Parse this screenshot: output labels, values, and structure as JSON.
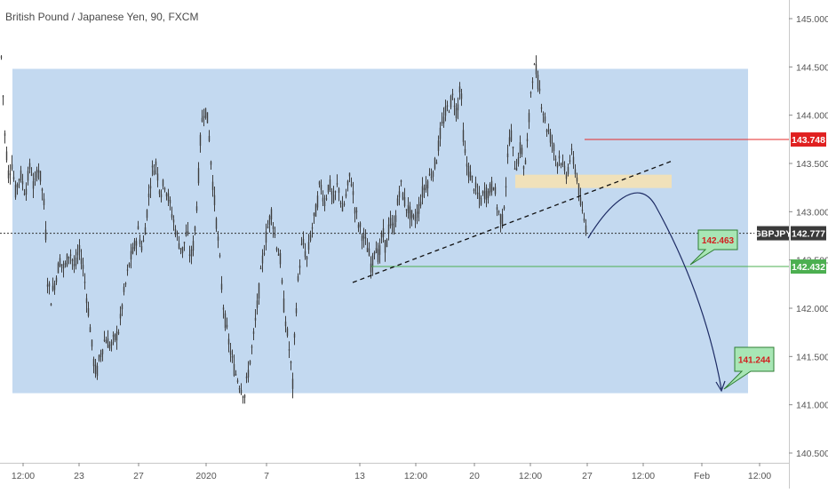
{
  "header": {
    "title": "British Pound / Japanese Yen, 90, FXCM"
  },
  "colors": {
    "zone_fill": "#c3d9f0",
    "supply_zone": "#f2e2b6",
    "red_line": "#e52b2b",
    "green_line": "#4caf50",
    "candles": "#3e3e3e",
    "target_fill": "#a8e6b5",
    "price_tag": "#3a3a3a",
    "red_tag": "#e02020",
    "green_tag": "#4caf50"
  },
  "chart_data": {
    "type": "candlestick",
    "symbol": "GBPJPY",
    "timeframe": "90",
    "source": "FXCM",
    "ylim": [
      140.42,
      145.17
    ],
    "y_ticks": [
      "145.000",
      "144.500",
      "144.000",
      "143.500",
      "143.000",
      "142.500",
      "142.000",
      "141.500",
      "141.000",
      "140.500"
    ],
    "x_ticks": [
      "12:00",
      "23",
      "27",
      "2020",
      "7",
      "13",
      "12:00",
      "20",
      "12:00",
      "27",
      "12:00",
      "Feb",
      "12:00"
    ],
    "series_path": [
      [
        0,
        144.8
      ],
      [
        2,
        144.4
      ],
      [
        5,
        143.8
      ],
      [
        9,
        143.4
      ],
      [
        13,
        143.5
      ],
      [
        17,
        143.2
      ],
      [
        22,
        143.4
      ],
      [
        28,
        143.2
      ],
      [
        34,
        143.5
      ],
      [
        38,
        143.2
      ],
      [
        42,
        143.5
      ],
      [
        46,
        143.3
      ],
      [
        50,
        143.0
      ],
      [
        53,
        142.3
      ],
      [
        57,
        142.1
      ],
      [
        62,
        142.3
      ],
      [
        67,
        142.5
      ],
      [
        72,
        142.4
      ],
      [
        78,
        142.6
      ],
      [
        84,
        142.4
      ],
      [
        88,
        142.6
      ],
      [
        92,
        142.5
      ],
      [
        96,
        142.2
      ],
      [
        100,
        141.9
      ],
      [
        104,
        141.5
      ],
      [
        108,
        141.3
      ],
      [
        112,
        141.5
      ],
      [
        118,
        141.7
      ],
      [
        124,
        141.6
      ],
      [
        130,
        141.7
      ],
      [
        134,
        141.8
      ],
      [
        138,
        142.1
      ],
      [
        142,
        142.3
      ],
      [
        146,
        142.5
      ],
      [
        150,
        142.6
      ],
      [
        155,
        142.8
      ],
      [
        160,
        142.6
      ],
      [
        165,
        143.0
      ],
      [
        170,
        143.4
      ],
      [
        175,
        143.5
      ],
      [
        180,
        143.2
      ],
      [
        185,
        143.3
      ],
      [
        190,
        143.1
      ],
      [
        195,
        142.9
      ],
      [
        200,
        142.7
      ],
      [
        205,
        142.6
      ],
      [
        210,
        142.8
      ],
      [
        214,
        142.5
      ],
      [
        218,
        142.7
      ],
      [
        222,
        143.2
      ],
      [
        226,
        143.9
      ],
      [
        230,
        144.1
      ],
      [
        234,
        143.9
      ],
      [
        238,
        143.4
      ],
      [
        242,
        143.0
      ],
      [
        246,
        142.6
      ],
      [
        250,
        142.1
      ],
      [
        254,
        141.8
      ],
      [
        258,
        141.6
      ],
      [
        262,
        141.4
      ],
      [
        266,
        141.3
      ],
      [
        270,
        141.2
      ],
      [
        275,
        141.1
      ],
      [
        280,
        141.4
      ],
      [
        285,
        141.7
      ],
      [
        290,
        142.1
      ],
      [
        295,
        142.5
      ],
      [
        300,
        142.8
      ],
      [
        305,
        143.0
      ],
      [
        310,
        142.7
      ],
      [
        315,
        142.5
      ],
      [
        318,
        142.1
      ],
      [
        322,
        141.8
      ],
      [
        326,
        141.5
      ],
      [
        329,
        141.2
      ],
      [
        332,
        141.9
      ],
      [
        336,
        142.4
      ],
      [
        340,
        142.7
      ],
      [
        345,
        142.5
      ],
      [
        350,
        142.8
      ],
      [
        355,
        143.0
      ],
      [
        360,
        143.3
      ],
      [
        365,
        143.1
      ],
      [
        370,
        143.3
      ],
      [
        375,
        143.1
      ],
      [
        380,
        143.3
      ],
      [
        385,
        143.0
      ],
      [
        390,
        143.2
      ],
      [
        394,
        143.4
      ],
      [
        398,
        143.1
      ],
      [
        402,
        142.9
      ],
      [
        406,
        142.8
      ],
      [
        410,
        142.7
      ],
      [
        414,
        142.6
      ],
      [
        418,
        142.4
      ],
      [
        422,
        142.7
      ],
      [
        426,
        142.5
      ],
      [
        430,
        142.8
      ],
      [
        434,
        142.6
      ],
      [
        438,
        142.9
      ],
      [
        442,
        142.8
      ],
      [
        446,
        143.0
      ],
      [
        450,
        143.3
      ],
      [
        455,
        143.1
      ],
      [
        460,
        143.0
      ],
      [
        465,
        142.9
      ],
      [
        470,
        143.0
      ],
      [
        475,
        143.2
      ],
      [
        480,
        143.3
      ],
      [
        485,
        143.4
      ],
      [
        490,
        143.5
      ],
      [
        495,
        143.8
      ],
      [
        500,
        144.0
      ],
      [
        505,
        144.1
      ],
      [
        510,
        144.2
      ],
      [
        514,
        144.0
      ],
      [
        518,
        144.4
      ],
      [
        520,
        143.9
      ],
      [
        524,
        143.5
      ],
      [
        528,
        143.4
      ],
      [
        532,
        143.3
      ],
      [
        536,
        143.2
      ],
      [
        540,
        143.1
      ],
      [
        545,
        143.2
      ],
      [
        550,
        143.2
      ],
      [
        555,
        143.3
      ],
      [
        560,
        143.0
      ],
      [
        565,
        142.9
      ],
      [
        570,
        143.4
      ],
      [
        574,
        143.9
      ],
      [
        578,
        143.5
      ],
      [
        582,
        143.5
      ],
      [
        586,
        143.7
      ],
      [
        590,
        143.4
      ],
      [
        594,
        143.8
      ],
      [
        598,
        144.4
      ],
      [
        602,
        144.5
      ],
      [
        606,
        144.3
      ],
      [
        610,
        144.1
      ],
      [
        614,
        143.9
      ],
      [
        618,
        143.8
      ],
      [
        622,
        143.7
      ],
      [
        626,
        143.5
      ],
      [
        630,
        143.6
      ],
      [
        634,
        143.4
      ],
      [
        638,
        143.4
      ],
      [
        642,
        143.6
      ],
      [
        646,
        143.5
      ],
      [
        650,
        143.3
      ],
      [
        654,
        143.0
      ],
      [
        658,
        142.9
      ],
      [
        660,
        142.8
      ]
    ],
    "annotations": {
      "demand_zone": [
        141.12,
        144.48
      ],
      "supply_zone": [
        143.22,
        143.31
      ],
      "resistance_level": 143.748,
      "support_level": 142.432,
      "current_price": 142.777,
      "target_1": 142.463,
      "target_2": 141.244
    },
    "labels": {
      "symbol_tag": "GBPJPY",
      "current_price_tag": "142.777",
      "red_tag": "143.748",
      "green_tag": "142.432",
      "target_1": "142.463",
      "target_2": "141.244"
    }
  }
}
